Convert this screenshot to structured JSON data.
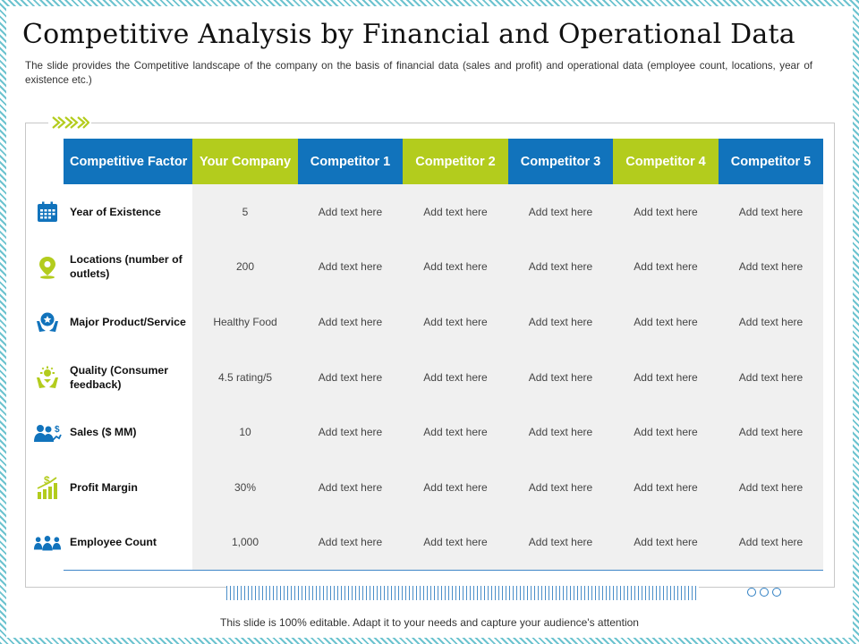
{
  "slide": {
    "title": "Competitive Analysis by Financial and Operational Data",
    "subtitle": "The slide provides the Competitive landscape of the company on the basis of financial data (sales and profit) and operational data (employee count, locations, year of existence etc.)",
    "footer": "This slide is 100% editable. Adapt it to your needs and capture your audience's attention"
  },
  "colors": {
    "blue": "#1173bc",
    "green": "#b3cc1d",
    "row_bg": "#f0f0f0"
  },
  "table": {
    "headers": [
      "Competitive Factor",
      "Your Company",
      "Competitor 1",
      "Competitor 2",
      "Competitor 3",
      "Competitor 4",
      "Competitor 5"
    ],
    "rows": [
      {
        "icon": "calendar-icon",
        "factor": "Year of Existence",
        "values": [
          "5",
          "Add text here",
          "Add text here",
          "Add text here",
          "Add text here",
          "Add text here"
        ]
      },
      {
        "icon": "location-pin-icon",
        "factor": "Locations (number of outlets)",
        "values": [
          "200",
          "Add text here",
          "Add text here",
          "Add text here",
          "Add text here",
          "Add text here"
        ]
      },
      {
        "icon": "product-hands-icon",
        "factor": "Major Product/Service",
        "values": [
          "Healthy Food",
          "Add text here",
          "Add text here",
          "Add text here",
          "Add text here",
          "Add text here"
        ]
      },
      {
        "icon": "quality-hands-icon",
        "factor": "Quality (Consumer feedback)",
        "values": [
          "4.5 rating/5",
          "Add text here",
          "Add text here",
          "Add text here",
          "Add text here",
          "Add text here"
        ]
      },
      {
        "icon": "sales-people-icon",
        "factor": "Sales ($ MM)",
        "values": [
          "10",
          "Add text here",
          "Add text here",
          "Add text here",
          "Add text here",
          "Add text here"
        ]
      },
      {
        "icon": "profit-chart-icon",
        "factor": "Profit Margin",
        "values": [
          "30%",
          "Add text here",
          "Add text here",
          "Add text here",
          "Add text here",
          "Add text here"
        ]
      },
      {
        "icon": "employees-icon",
        "factor": "Employee Count",
        "values": [
          "1,000",
          "Add text here",
          "Add text here",
          "Add text here",
          "Add text here",
          "Add text here"
        ]
      }
    ]
  }
}
